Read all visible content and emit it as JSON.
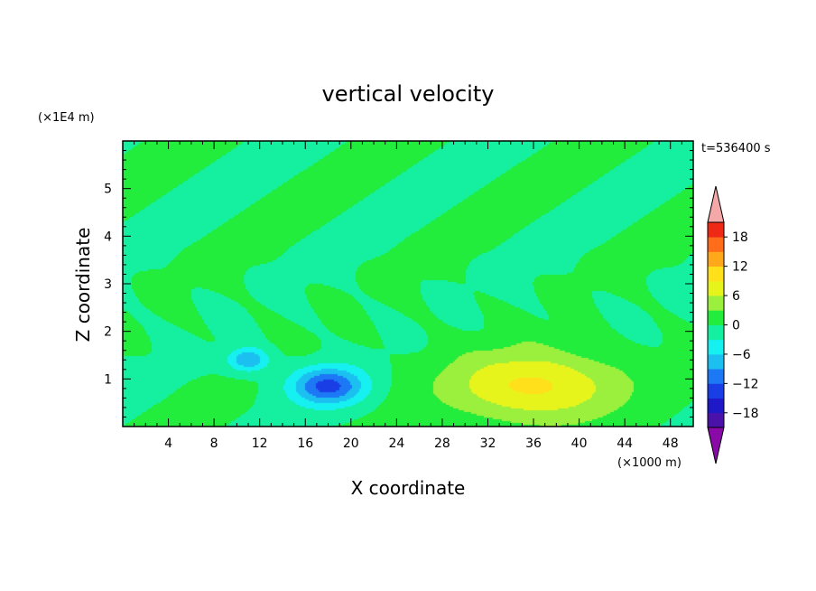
{
  "chart_data": {
    "type": "heatmap",
    "title": "vertical velocity",
    "xlabel": "X coordinate",
    "ylabel": "Z coordinate",
    "x_unit": "(×1000 m)",
    "y_unit": "(×1E4 m)",
    "time_label": "t=536400 s",
    "xlim": [
      0,
      50
    ],
    "ylim": [
      0,
      6
    ],
    "x_ticks": [
      4,
      8,
      12,
      16,
      20,
      24,
      28,
      32,
      36,
      40,
      44,
      48
    ],
    "y_ticks": [
      1,
      2,
      3,
      4,
      5
    ],
    "colorbar": {
      "tick_values": [
        18,
        12,
        6,
        0,
        -6,
        -12,
        -18
      ],
      "tick_labels": [
        "18",
        "12",
        "6",
        "0",
        "−6",
        "−12",
        "−18"
      ],
      "levels": [
        -21,
        -18,
        -15,
        -12,
        -9,
        -6,
        -3,
        0,
        3,
        6,
        9,
        12,
        15,
        18,
        21
      ],
      "under_color": "#8a0aa8",
      "over_color": "#f4a8a8",
      "colors": [
        "#4a12a8",
        "#1e18c8",
        "#1a3ee6",
        "#1c78f4",
        "#1cc0f0",
        "#16f0f0",
        "#14f0a0",
        "#22ec3c",
        "#9af03c",
        "#e6f41c",
        "#ffe01a",
        "#ffa81a",
        "#ff6c1a",
        "#ee2a16"
      ]
    },
    "features": [
      {
        "kind": "updraft",
        "x": 36,
        "z": 0.85,
        "peak": 10,
        "sx": 7.5,
        "sz": 0.75
      },
      {
        "kind": "downdraft",
        "x": 18,
        "z": 0.85,
        "peak": -13,
        "sx": 3.2,
        "sz": 0.4
      },
      {
        "kind": "downdraft",
        "x": 11,
        "z": 1.4,
        "peak": -9,
        "sx": 1.8,
        "sz": 0.25
      }
    ]
  }
}
